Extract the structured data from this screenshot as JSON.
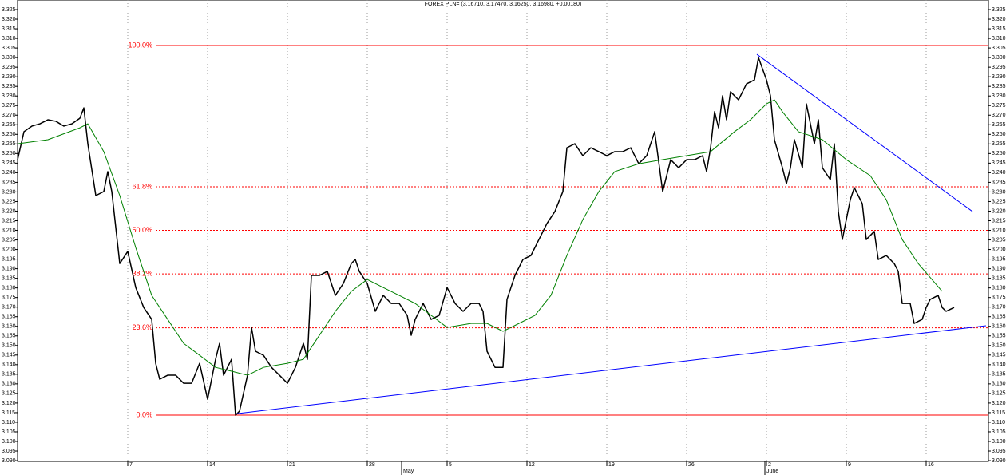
{
  "chart_data": {
    "type": "line",
    "title": "FOREX PLN= (3.16710, 3.17470, 3.16250, 3.16980, +0.00180)",
    "xlim": [
      -6.9,
      53.9
    ],
    "ylim": [
      3.0896,
      3.33
    ],
    "grid": "x",
    "xticks": [
      {
        "value": 0,
        "label": "7"
      },
      {
        "value": 5,
        "label": "14"
      },
      {
        "value": 10,
        "label": "21"
      },
      {
        "value": 15,
        "label": "28"
      },
      {
        "value": 20,
        "label": "5"
      },
      {
        "value": 25,
        "label": "12"
      },
      {
        "value": 30,
        "label": "19"
      },
      {
        "value": 35,
        "label": "26"
      },
      {
        "value": 40,
        "label": "2"
      },
      {
        "value": 45,
        "label": "9"
      },
      {
        "value": 50,
        "label": "16"
      }
    ],
    "month_ticks": [
      {
        "value": 17.15,
        "label": "May"
      },
      {
        "value": 39.9,
        "label": "June"
      }
    ],
    "yticks": [
      {
        "value": 3.09,
        "label": "3.090"
      },
      3.095,
      {
        "value": 3.1,
        "label": "3.100"
      },
      3.105,
      {
        "value": 3.11,
        "label": "3.110"
      },
      3.115,
      {
        "value": 3.12,
        "label": "3.120"
      },
      3.125,
      {
        "value": 3.13,
        "label": "3.130"
      },
      3.135,
      {
        "value": 3.14,
        "label": "3.140"
      },
      3.145,
      {
        "value": 3.15,
        "label": "3.150"
      },
      3.155,
      {
        "value": 3.16,
        "label": "3.160"
      },
      3.165,
      {
        "value": 3.17,
        "label": "3.170"
      },
      3.175,
      {
        "value": 3.18,
        "label": "3.180"
      },
      3.185,
      {
        "value": 3.19,
        "label": "3.190"
      },
      3.195,
      {
        "value": 3.2,
        "label": "3.200"
      },
      3.205,
      {
        "value": 3.21,
        "label": "3.210"
      },
      3.215,
      {
        "value": 3.22,
        "label": "3.220"
      },
      3.225,
      {
        "value": 3.23,
        "label": "3.230"
      },
      3.235,
      {
        "value": 3.24,
        "label": "3.240"
      },
      3.245,
      {
        "value": 3.25,
        "label": "3.250"
      },
      3.255,
      {
        "value": 3.26,
        "label": "3.260"
      },
      3.265,
      {
        "value": 3.27,
        "label": "3.270"
      },
      3.275,
      {
        "value": 3.28,
        "label": "3.280"
      },
      3.285,
      {
        "value": 3.29,
        "label": "3.290"
      },
      3.295,
      {
        "value": 3.3,
        "label": "3.300"
      },
      3.305,
      {
        "value": 3.31,
        "label": "3.310"
      },
      3.315,
      {
        "value": 3.32,
        "label": "3.320"
      },
      3.325
    ],
    "series": [
      {
        "color": "#000000",
        "width": 1.5,
        "x": [
          -6.9,
          -6.5,
          -6,
          -5.5,
          -5,
          -4.5,
          -4,
          -3.5,
          -3,
          -2.75,
          -2.5,
          -2,
          -1.5,
          -1.25,
          -1,
          -0.5,
          0,
          0.5,
          1,
          1.5,
          1.75,
          2,
          2.5,
          3,
          3.5,
          4,
          4.5,
          5,
          5.5,
          5.75,
          6,
          6.5,
          6.75,
          7,
          7.5,
          7.75,
          8,
          8.5,
          9,
          9.5,
          10,
          10.5,
          11,
          11.25,
          11.5,
          12,
          12.5,
          13,
          13.5,
          14,
          14.25,
          14.5,
          15,
          15.5,
          16,
          16.5,
          17,
          17.5,
          17.75,
          18,
          18.5,
          19,
          19.5,
          20,
          20.5,
          21,
          21.5,
          22,
          22.25,
          22.5,
          23,
          23.5,
          23.75,
          24.25,
          24.75,
          25.25,
          25.75,
          26.25,
          26.75,
          27.25,
          27.5,
          28,
          28.5,
          29,
          29.5,
          30,
          30.5,
          31,
          31.5,
          32,
          32.5,
          33,
          33.5,
          34,
          34.5,
          35,
          35.5,
          36,
          36.25,
          36.5,
          36.75,
          37,
          37.25,
          37.5,
          37.75,
          38.25,
          38.75,
          39.25,
          39.5,
          40,
          40.25,
          40.5,
          41,
          41.25,
          41.5,
          41.75,
          42.25,
          42.5,
          43,
          43.25,
          43.5,
          44,
          44.25,
          44.5,
          44.75,
          45.25,
          45.5,
          46,
          46.25,
          46.75,
          47,
          47.5,
          48,
          48.25,
          48.5,
          49,
          49.25,
          49.75,
          50,
          50.25,
          50.75,
          51,
          51.25,
          51.75
        ],
        "values": [
          3.2468,
          3.2614,
          3.2643,
          3.2655,
          3.2676,
          3.2668,
          3.2643,
          3.2655,
          3.2684,
          3.2738,
          3.2551,
          3.2281,
          3.2302,
          3.2406,
          3.2302,
          3.1927,
          3.199,
          3.1802,
          3.1698,
          3.1636,
          3.1407,
          3.1324,
          3.1345,
          3.1345,
          3.1303,
          3.1303,
          3.1407,
          3.122,
          3.1428,
          3.1511,
          3.1345,
          3.1428,
          3.1137,
          3.1158,
          3.1345,
          3.1594,
          3.147,
          3.1449,
          3.1386,
          3.1345,
          3.1303,
          3.1386,
          3.1511,
          3.1428,
          3.1865,
          3.1865,
          3.1886,
          3.1761,
          3.1823,
          3.1927,
          3.1948,
          3.1886,
          3.1823,
          3.1678,
          3.1761,
          3.1719,
          3.1719,
          3.1657,
          3.1553,
          3.1636,
          3.1719,
          3.1636,
          3.1657,
          3.1802,
          3.1719,
          3.1678,
          3.1719,
          3.1719,
          3.1678,
          3.147,
          3.1386,
          3.1386,
          3.174,
          3.1865,
          3.1948,
          3.1969,
          3.2052,
          3.2135,
          3.2198,
          3.2302,
          3.253,
          3.2551,
          3.2489,
          3.253,
          3.251,
          3.2489,
          3.251,
          3.251,
          3.253,
          3.2447,
          3.2489,
          3.2614,
          3.2302,
          3.2468,
          3.2426,
          3.2468,
          3.2468,
          3.2489,
          3.2406,
          3.253,
          3.2718,
          3.2634,
          3.2801,
          3.2676,
          3.2822,
          3.278,
          3.2863,
          3.2884,
          3.3,
          3.2884,
          3.2801,
          3.2572,
          3.2426,
          3.2343,
          3.2426,
          3.2572,
          3.2426,
          3.2759,
          3.2551,
          3.2676,
          3.2426,
          3.2364,
          3.2551,
          3.2198,
          3.2052,
          3.226,
          3.2322,
          3.2239,
          3.2052,
          3.2094,
          3.1948,
          3.1969,
          3.1927,
          3.1886,
          3.1719,
          3.1719,
          3.1615,
          3.1636,
          3.1698,
          3.174,
          3.1761,
          3.1698,
          3.1678,
          3.1698
        ]
      },
      {
        "color": "#008000",
        "width": 1,
        "x": [
          -6.9,
          -5,
          -3,
          -2.5,
          -1.5,
          -0.5,
          0.5,
          1.5,
          2.5,
          3.5,
          4.5,
          5.5,
          6.5,
          7.5,
          8.5,
          10,
          11,
          12,
          13,
          14,
          15,
          16,
          17,
          18,
          19,
          20,
          21.5,
          22.5,
          23.5,
          24.5,
          25.5,
          26.5,
          27.5,
          28.5,
          29.5,
          30.5,
          32,
          33.5,
          35,
          36.5,
          38,
          39,
          40,
          40.5,
          41,
          42,
          43.5,
          45,
          46.5,
          47.5,
          48.5,
          49.5,
          51
        ],
        "values": [
          3.2551,
          3.2572,
          3.2634,
          3.2655,
          3.251,
          3.2281,
          3.201,
          3.1761,
          3.1636,
          3.1511,
          3.1449,
          3.1386,
          3.1366,
          3.1345,
          3.1386,
          3.1407,
          3.1428,
          3.1553,
          3.1678,
          3.1782,
          3.1844,
          3.1802,
          3.1761,
          3.1719,
          3.1657,
          3.1594,
          3.1615,
          3.1615,
          3.1574,
          3.1615,
          3.1657,
          3.1761,
          3.1969,
          3.2156,
          3.2302,
          3.2406,
          3.2447,
          3.2468,
          3.2489,
          3.251,
          3.2614,
          3.2676,
          3.2759,
          3.278,
          3.2718,
          3.2614,
          3.2572,
          3.2468,
          3.2385,
          3.226,
          3.2052,
          3.1927,
          3.1782
        ]
      }
    ],
    "fib_levels": [
      {
        "label": "100.0%",
        "value": 3.3063,
        "dashed": false
      },
      {
        "label": "61.8%",
        "value": 3.2327,
        "dashed": true
      },
      {
        "label": "50.0%",
        "value": 3.21,
        "dashed": true
      },
      {
        "label": "38.2%",
        "value": 3.1873,
        "dashed": true
      },
      {
        "label": "23.6%",
        "value": 3.1592,
        "dashed": true
      },
      {
        "label": "0.0%",
        "value": 3.1137,
        "dashed": false
      }
    ],
    "fib_color": "#ff0000",
    "fib_start": 1.75,
    "trend_lines": [
      {
        "color": "#0000ff",
        "x": [
          6.85,
          53.75
        ],
        "values": [
          3.1145,
          3.1603
        ]
      },
      {
        "color": "#0000ff",
        "x": [
          39.4,
          52.9
        ],
        "values": [
          3.3017,
          3.2198
        ]
      }
    ]
  }
}
